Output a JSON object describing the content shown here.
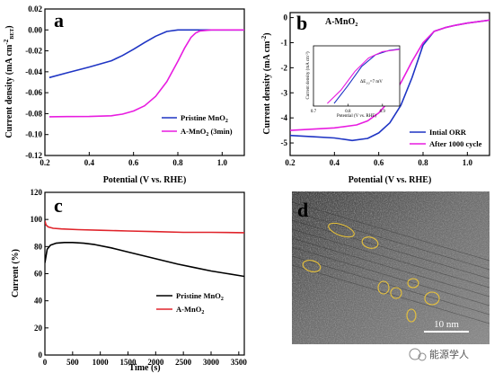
{
  "chart_data": [
    {
      "panel": "a",
      "type": "line",
      "xlabel": "Potential (V vs. RHE)",
      "ylabel": "Current density (mA cm",
      "ylabel_sup": "-2",
      "ylabel_sub": "BET",
      "ylabel_end": ")",
      "xlim": [
        0.2,
        1.1
      ],
      "ylim": [
        -0.12,
        0.02
      ],
      "xticks": [
        "0.2",
        "0.4",
        "0.6",
        "0.8",
        "1.0"
      ],
      "yticks": [
        "0.02",
        "0.00",
        "-0.02",
        "-0.04",
        "-0.06",
        "-0.08",
        "-0.10",
        "-0.12"
      ],
      "legend_position": "bottom-right",
      "series": [
        {
          "name": "Pristine MnO",
          "name_sub": "2",
          "color": "#1f35c4",
          "x": [
            0.22,
            0.3,
            0.4,
            0.5,
            0.55,
            0.6,
            0.65,
            0.7,
            0.75,
            0.8,
            0.85,
            0.88,
            0.95,
            1.0,
            1.1
          ],
          "y": [
            -0.0455,
            -0.041,
            -0.0355,
            -0.0295,
            -0.0245,
            -0.0185,
            -0.012,
            -0.006,
            -0.0015,
            0.0,
            0.0,
            0.0,
            0.0,
            0.0,
            0.0
          ]
        },
        {
          "name": "A-MnO",
          "name_sub": "2",
          "name_tail": " (3min)",
          "color": "#e81ce0",
          "x": [
            0.22,
            0.3,
            0.4,
            0.5,
            0.55,
            0.6,
            0.65,
            0.7,
            0.75,
            0.8,
            0.83,
            0.86,
            0.88,
            0.9,
            0.95,
            1.0,
            1.1
          ],
          "y": [
            -0.083,
            -0.0828,
            -0.0827,
            -0.082,
            -0.0805,
            -0.0775,
            -0.0725,
            -0.0635,
            -0.0495,
            -0.03,
            -0.0175,
            -0.007,
            -0.003,
            -0.001,
            0.0,
            0.0,
            0.0
          ]
        }
      ]
    },
    {
      "panel": "b",
      "type": "line",
      "title": "A-MnO",
      "title_sub": "2",
      "xlabel": "Potential (V vs. RHE)",
      "ylabel": "Current density (mA cm",
      "ylabel_sup": "-2",
      "ylabel_end": ")",
      "xlim": [
        0.2,
        1.1
      ],
      "ylim": [
        -5.5,
        0.2
      ],
      "xticks": [
        "0.2",
        "0.4",
        "0.6",
        "0.8",
        "1.0"
      ],
      "yticks": [
        "0",
        "-1",
        "-2",
        "-3",
        "-4",
        "-5"
      ],
      "legend_position": "bottom-right",
      "series": [
        {
          "name": "Intial ORR",
          "color": "#1f35c4",
          "x": [
            0.2,
            0.3,
            0.4,
            0.48,
            0.55,
            0.6,
            0.65,
            0.7,
            0.75,
            0.8,
            0.85,
            0.9,
            0.95,
            1.0,
            1.1
          ],
          "y": [
            -4.7,
            -4.75,
            -4.8,
            -4.9,
            -4.82,
            -4.6,
            -4.2,
            -3.5,
            -2.4,
            -1.1,
            -0.55,
            -0.4,
            -0.3,
            -0.22,
            -0.1
          ]
        },
        {
          "name": "After 1000 cycle",
          "color": "#e81ce0",
          "x": [
            0.2,
            0.3,
            0.4,
            0.5,
            0.55,
            0.6,
            0.65,
            0.7,
            0.75,
            0.8,
            0.85,
            0.9,
            0.95,
            1.0,
            1.1
          ],
          "y": [
            -4.5,
            -4.45,
            -4.4,
            -4.28,
            -4.12,
            -3.8,
            -3.3,
            -2.6,
            -1.75,
            -1.0,
            -0.55,
            -0.4,
            -0.3,
            -0.22,
            -0.1
          ]
        }
      ],
      "inset": {
        "xlabel": "Potential (V vs. RHE)",
        "ylabel": "Current density (mA cm",
        "ylabel_sup": "-2",
        "ylabel_end": ")",
        "xlim": [
          0.7,
          0.95
        ],
        "xticks": [
          "0.7",
          "0.8",
          "0.9"
        ],
        "annotation": "ΔE",
        "annotation_sub": "1/2",
        "annotation_tail": "=7 mV",
        "series": [
          {
            "color": "#1f35c4",
            "x": [
              0.76,
              0.8,
              0.84,
              0.88,
              0.92,
              0.95
            ],
            "y": [
              -5.0,
              -3.6,
              -2.1,
              -1.2,
              -0.85,
              -0.75
            ]
          },
          {
            "color": "#e81ce0",
            "x": [
              0.74,
              0.78,
              0.82,
              0.86,
              0.9,
              0.95
            ],
            "y": [
              -5.0,
              -3.95,
              -2.5,
              -1.45,
              -0.95,
              -0.78
            ]
          }
        ]
      }
    },
    {
      "panel": "c",
      "type": "line",
      "xlabel": "Time (s)",
      "ylabel": "Current (%)",
      "xlim": [
        0,
        3600
      ],
      "ylim": [
        0,
        120
      ],
      "xticks": [
        "0",
        "500",
        "1000",
        "1500",
        "2000",
        "2500",
        "3000",
        "3500"
      ],
      "yticks": [
        "0",
        "20",
        "40",
        "60",
        "80",
        "100",
        "120"
      ],
      "legend_position": "bottom-right",
      "series": [
        {
          "name": "Pristine MnO",
          "name_sub": "2",
          "color": "#000000",
          "x": [
            0,
            40,
            100,
            200,
            350,
            500,
            700,
            900,
            1200,
            1500,
            1800,
            2100,
            2400,
            2700,
            3000,
            3300,
            3600
          ],
          "y": [
            68,
            78,
            81,
            82.5,
            83,
            83,
            82.5,
            81.5,
            79,
            76,
            73,
            70,
            67,
            64.5,
            62,
            60,
            58
          ]
        },
        {
          "name": "A-MnO",
          "name_sub": "2",
          "color": "#e0242b",
          "x": [
            0,
            20,
            60,
            150,
            300,
            600,
            1000,
            1500,
            2000,
            2500,
            3000,
            3600
          ],
          "y": [
            99,
            96,
            94.5,
            93.5,
            93,
            92.5,
            92,
            91.5,
            91,
            90.5,
            90.5,
            90.2
          ]
        }
      ]
    }
  ],
  "panel_d": {
    "letter": "d",
    "scale_bar_label": "10 nm"
  },
  "watermark": "能源学人"
}
